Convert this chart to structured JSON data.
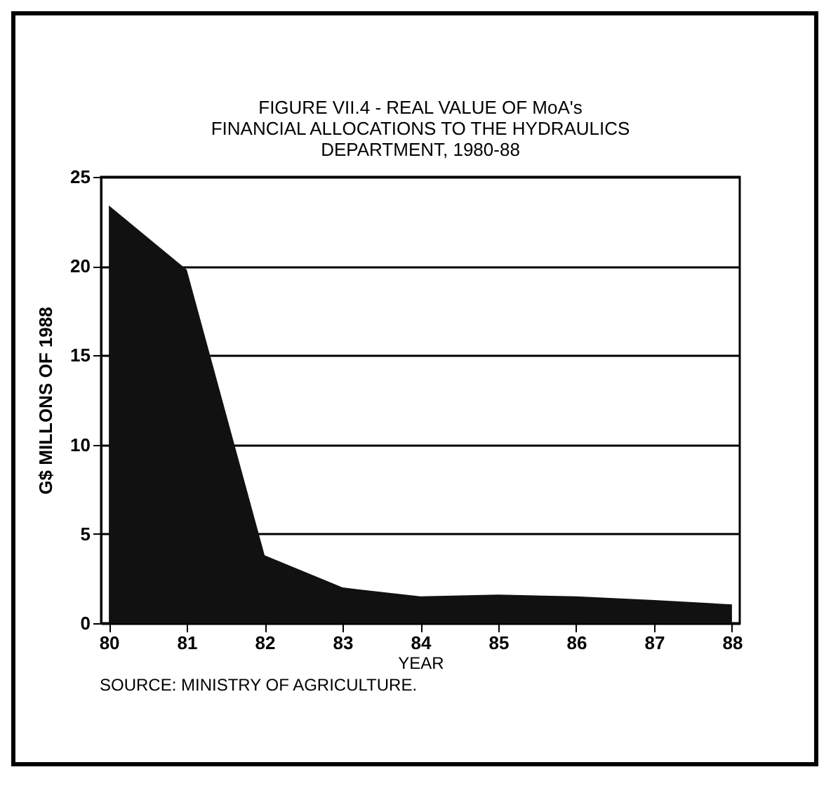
{
  "chart_data": {
    "type": "area",
    "title": [
      "FIGURE VII.4 - REAL VALUE OF MoA's",
      "FINANCIAL ALLOCATIONS TO THE HYDRAULICS",
      "DEPARTMENT, 1980-88"
    ],
    "xlabel": "YEAR",
    "ylabel": "G$ MILLONS OF 1988",
    "categories": [
      "80",
      "81",
      "82",
      "83",
      "84",
      "85",
      "86",
      "87",
      "88"
    ],
    "series": [
      {
        "color": "#111111",
        "values": [
          23.4,
          19.8,
          3.8,
          2.0,
          1.5,
          1.6,
          1.5,
          1.3,
          1.05
        ]
      }
    ],
    "ylim": [
      0,
      25
    ],
    "yticks": [
      0,
      5,
      10,
      15,
      20,
      25
    ],
    "grid": "y",
    "annotations": [
      "SOURCE: MINISTRY OF AGRICULTURE."
    ]
  }
}
